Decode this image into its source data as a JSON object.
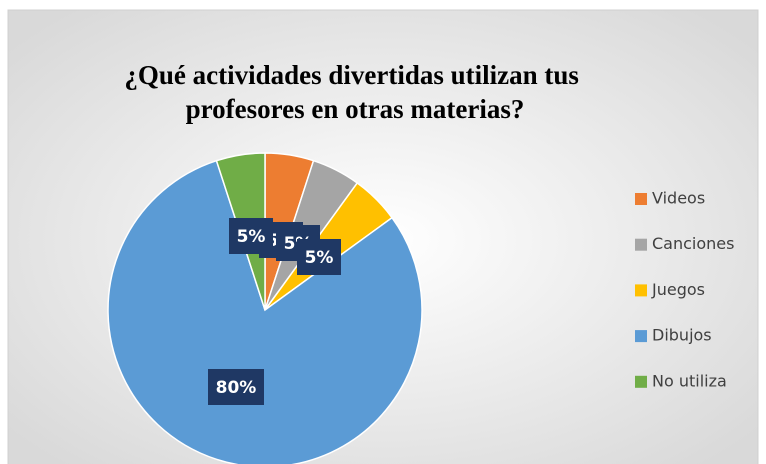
{
  "chart_data": {
    "type": "pie",
    "title": "¿Qué actividades divertidas utilizan tus profesores en otras materias?",
    "categories": [
      "Videos",
      "Canciones",
      "Juegos",
      "Dibujos",
      "No utiliza"
    ],
    "values": [
      5,
      5,
      5,
      80,
      5
    ],
    "value_labels": [
      "5%",
      "5%",
      "5%",
      "80%",
      "5%"
    ],
    "colors": [
      "#ed7d31",
      "#a5a5a5",
      "#ffc000",
      "#5b9bd5",
      "#70ad47"
    ],
    "legend": "right"
  }
}
